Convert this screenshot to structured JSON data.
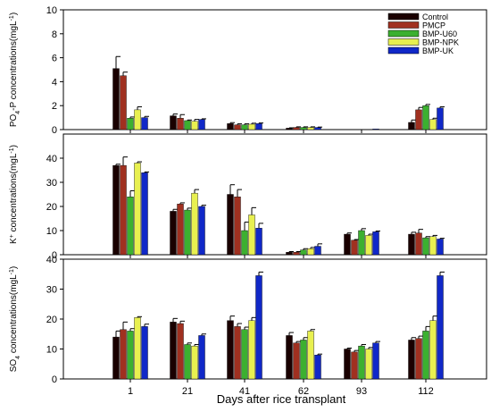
{
  "chart_data": [
    {
      "type": "bar",
      "panel": "top",
      "ylabel_main": "PO",
      "ylabel_sub": "4",
      "ylabel_rest": "-P concentrations(mgL",
      "ylabel_exp": "-1",
      "ylabel_close": ")",
      "ylim": [
        0,
        10
      ],
      "yticks": [
        0,
        2,
        4,
        6,
        8,
        10
      ],
      "categories": [
        "1",
        "21",
        "41",
        "62",
        "93",
        "112"
      ],
      "series": [
        {
          "name": "Control",
          "color": "#1a0000",
          "values": [
            5.1,
            1.15,
            0.5,
            0.12,
            0.0,
            0.6
          ],
          "errors": [
            1.0,
            0.15,
            0.08,
            0.03,
            0,
            0.2
          ]
        },
        {
          "name": "PMCP",
          "color": "#a03020",
          "values": [
            4.5,
            0.95,
            0.4,
            0.18,
            0.0,
            1.65
          ],
          "errors": [
            0.3,
            0.3,
            0.08,
            0.05,
            0,
            0.2
          ]
        },
        {
          "name": "BMP-U60",
          "color": "#3cb030",
          "values": [
            0.95,
            0.75,
            0.4,
            0.18,
            0.0,
            2.0
          ],
          "errors": [
            0.1,
            0.05,
            0.08,
            0.05,
            0,
            0.1
          ]
        },
        {
          "name": "BMP-NPK",
          "color": "#e8f050",
          "values": [
            1.65,
            0.7,
            0.45,
            0.18,
            0.0,
            0.85
          ],
          "errors": [
            0.25,
            0.15,
            0.08,
            0.05,
            0,
            0.1
          ]
        },
        {
          "name": "BMP-UK",
          "color": "#1028c8",
          "values": [
            1.0,
            0.85,
            0.5,
            0.18,
            0.05,
            1.8
          ],
          "errors": [
            0.1,
            0.05,
            0.05,
            0.03,
            0,
            0.1
          ]
        }
      ]
    },
    {
      "type": "bar",
      "panel": "middle",
      "ylabel_main": "K",
      "ylabel_sup": "+",
      "ylabel_rest": " concentrations(mgL",
      "ylabel_exp": "-1",
      "ylabel_close": ")",
      "ylim": [
        0,
        50
      ],
      "yticks": [
        0,
        10,
        20,
        30,
        40
      ],
      "categories": [
        "1",
        "21",
        "41",
        "62",
        "93",
        "112"
      ],
      "series": [
        {
          "name": "Control",
          "color": "#1a0000",
          "values": [
            37,
            18,
            25,
            1,
            8.5,
            8.5
          ],
          "errors": [
            0.5,
            0.8,
            4,
            0.3,
            0.5,
            0.8
          ]
        },
        {
          "name": "PMCP",
          "color": "#a03020",
          "values": [
            37,
            21,
            24,
            1,
            6,
            9
          ],
          "errors": [
            3.5,
            0.5,
            3,
            0.3,
            0.3,
            1.5
          ]
        },
        {
          "name": "BMP-U60",
          "color": "#3cb030",
          "values": [
            24,
            18.5,
            10,
            2,
            10,
            7
          ],
          "errors": [
            2.5,
            0.8,
            3.5,
            0.5,
            0.8,
            0.5
          ]
        },
        {
          "name": "BMP-NPK",
          "color": "#e8f050",
          "values": [
            38,
            25.5,
            16.5,
            2.5,
            8,
            7.5
          ],
          "errors": [
            0.5,
            1.5,
            3,
            0.5,
            0.5,
            0.5
          ]
        },
        {
          "name": "BMP-UK",
          "color": "#1028c8",
          "values": [
            34,
            20,
            11,
            3.5,
            9.5,
            6.5
          ],
          "errors": [
            0.3,
            0.5,
            2,
            1,
            0.3,
            0.3
          ]
        }
      ]
    },
    {
      "type": "bar",
      "panel": "bottom",
      "ylabel_main": "SO",
      "ylabel_sub": "4",
      "ylabel_rest": " concentrations(mgL",
      "ylabel_exp": "-1",
      "ylabel_close": ")",
      "ylim": [
        0,
        40
      ],
      "yticks": [
        0,
        10,
        20,
        30,
        40
      ],
      "xlabel": "Days after rice transplant",
      "categories": [
        "1",
        "21",
        "41",
        "62",
        "93",
        "112"
      ],
      "series": [
        {
          "name": "Control",
          "color": "#1a0000",
          "values": [
            14,
            19,
            19.5,
            14.5,
            10,
            13
          ],
          "errors": [
            2,
            1.2,
            1.5,
            1,
            0.3,
            0.8
          ]
        },
        {
          "name": "PMCP",
          "color": "#a03020",
          "values": [
            16.5,
            18.5,
            17.5,
            12,
            9,
            13.5
          ],
          "errors": [
            2.5,
            0.8,
            1,
            0.5,
            0.5,
            0.8
          ]
        },
        {
          "name": "BMP-U60",
          "color": "#3cb030",
          "values": [
            16,
            11.5,
            16.5,
            13,
            11,
            16
          ],
          "errors": [
            0.8,
            0.5,
            0.8,
            0.8,
            0.5,
            1.5
          ]
        },
        {
          "name": "BMP-NPK",
          "color": "#e8f050",
          "values": [
            20.5,
            11,
            19.5,
            16,
            10,
            19.5
          ],
          "errors": [
            0.3,
            0.5,
            1,
            0.5,
            0.5,
            1.5
          ]
        },
        {
          "name": "BMP-UK",
          "color": "#1028c8",
          "values": [
            17.5,
            14.5,
            34.5,
            8,
            12,
            34.5
          ],
          "errors": [
            0.8,
            0.5,
            1.2,
            0.3,
            0.5,
            1.2
          ]
        }
      ]
    }
  ],
  "legend": {
    "placement": "top-right",
    "entries": [
      {
        "label": "Control",
        "color": "#1a0000"
      },
      {
        "label": "PMCP",
        "color": "#a03020"
      },
      {
        "label": "BMP-U60",
        "color": "#3cb030"
      },
      {
        "label": "BMP-NPK",
        "color": "#e8f050"
      },
      {
        "label": "BMP-UK",
        "color": "#1028c8"
      }
    ]
  }
}
